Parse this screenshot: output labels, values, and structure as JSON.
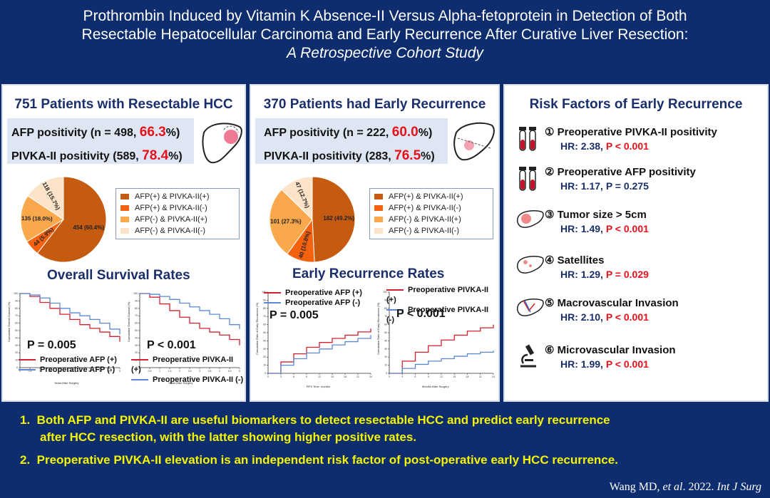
{
  "title": {
    "line1": "Prothrombin Induced by Vitamin K Absence-II Versus Alpha-fetoprotein in Detection of Both",
    "line2": "Resectable Hepatocellular Carcinoma and Early Recurrence After Curative Liver Resection:",
    "subtitle": "A Retrospective Cohort Study"
  },
  "panel1": {
    "heading": "751 Patients with Resectable HCC",
    "afp_label": "AFP positivity (n = 498, ",
    "afp_pct": "66.3",
    "pivka_label": "PIVKA-II positivity (589, ",
    "pivka_pct": "78.4",
    "pct_close": "%)",
    "survival_title": "Overall Survival Rates",
    "km1": {
      "p": "P = 0.005",
      "pos": "Preoperative AFP (+)",
      "neg": "Preoperative AFP (-)",
      "xlabel": "Years After Surgery",
      "ylabel": "Cumulative Overall Survival (%)"
    },
    "km2": {
      "p": "P < 0.001",
      "pos": "Preoperative PIVKA-II (+)",
      "neg": "Preoperative PIVKA-II (-)",
      "xlabel": "Years After Surgery",
      "ylabel": "Cumulative Overall Survival (%)"
    }
  },
  "panel2": {
    "heading": "370 Patients had Early Recurrence",
    "afp_label": "AFP positivity (n = 222, ",
    "afp_pct": "60.0",
    "pivka_label": "PIVKA-II positivity (283, ",
    "pivka_pct": "76.5",
    "pct_close": "%)",
    "recurrence_title": "Early Recurrence Rates",
    "km1": {
      "p": "P = 0.005",
      "pos": "Preoperative AFP (+)",
      "neg": "Preoperative AFP (-)",
      "xlabel": "RFS Time, months",
      "ylabel": "Cumulative Rate of Early Recurrence (%)"
    },
    "km2": {
      "p": "P < 0.001",
      "pos": "Preoperative PIVKA-II (+)",
      "neg": "Preoperative PIVKA-II (-)",
      "xlabel": "Months After Surgery",
      "ylabel": "Cumulative Rate of Early Recurrence (%)"
    }
  },
  "legend": [
    {
      "label": "AFP(+) & PIVKA-II(+)",
      "color": "#c55a11"
    },
    {
      "label": "AFP(+) & PIVKA-II(-)",
      "color": "#f4620f"
    },
    {
      "label": "AFP(-) & PIVKA-II(+)",
      "color": "#f9a94b"
    },
    {
      "label": "AFP(-) & PIVKA-II(-)",
      "color": "#fde3c8"
    }
  ],
  "chart_data": [
    {
      "type": "pie",
      "values": [
        454,
        44,
        135,
        118
      ],
      "labels": [
        "454 (60.4%)",
        "44 (5.9%)",
        "135 (18.0%)",
        "118 (15.7%)"
      ],
      "categories": [
        "AFP(+) & PIVKA-II(+)",
        "AFP(+) & PIVKA-II(-)",
        "AFP(-) & PIVKA-II(+)",
        "AFP(-) & PIVKA-II(-)"
      ]
    },
    {
      "type": "pie",
      "values": [
        182,
        40,
        101,
        47
      ],
      "labels": [
        "182 (49.2%)",
        "40 (10.8%)",
        "101 (27.3%)",
        "47 (12.7%)"
      ],
      "categories": [
        "AFP(+) & PIVKA-II(+)",
        "AFP(+) & PIVKA-II(-)",
        "AFP(-) & PIVKA-II(+)",
        "AFP(-) & PIVKA-II(-)"
      ]
    },
    {
      "type": "line",
      "xlabel": "Years After Surgery",
      "ylabel": "Cumulative Overall Survival (%)",
      "ylim": [
        0,
        100
      ],
      "series": [
        {
          "name": "Preoperative AFP (+)",
          "color": "#d42030",
          "x": [
            0,
            0.5,
            1,
            1.5,
            2,
            2.5,
            3,
            3.5,
            4,
            4.5,
            5
          ],
          "values": [
            100,
            96,
            88,
            80,
            72,
            65,
            58,
            53,
            48,
            42,
            35
          ]
        },
        {
          "name": "Preoperative AFP (-)",
          "color": "#5b88d6",
          "x": [
            0,
            0.5,
            1,
            1.5,
            2,
            2.5,
            3,
            3.5,
            4,
            4.5,
            5
          ],
          "values": [
            100,
            98,
            94,
            87,
            80,
            74,
            70,
            65,
            60,
            52,
            45
          ]
        }
      ]
    },
    {
      "type": "line",
      "xlabel": "Years After Surgery",
      "ylabel": "Cumulative Overall Survival (%)",
      "ylim": [
        0,
        100
      ],
      "series": [
        {
          "name": "Preoperative PIVKA-II (+)",
          "color": "#d42030",
          "x": [
            0,
            0.5,
            1,
            1.5,
            2,
            2.5,
            3,
            3.5,
            4,
            4.5,
            5
          ],
          "values": [
            100,
            95,
            86,
            77,
            68,
            60,
            53,
            48,
            44,
            38,
            30
          ]
        },
        {
          "name": "Preoperative PIVKA-II (-)",
          "color": "#5b88d6",
          "x": [
            0,
            0.5,
            1,
            1.5,
            2,
            2.5,
            3,
            3.5,
            4,
            4.5,
            5
          ],
          "values": [
            100,
            99,
            96,
            92,
            87,
            82,
            77,
            72,
            66,
            58,
            52
          ]
        }
      ]
    },
    {
      "type": "line",
      "xlabel": "RFS Time, months",
      "ylabel": "Cumulative Rate of Early Recurrence (%)",
      "ylim": [
        0,
        100
      ],
      "series": [
        {
          "name": "Preoperative AFP (+)",
          "color": "#d42030",
          "x": [
            0,
            3,
            6,
            9,
            12,
            15,
            18,
            21,
            24
          ],
          "values": [
            0,
            14,
            24,
            32,
            38,
            43,
            47,
            51,
            55
          ]
        },
        {
          "name": "Preoperative AFP (-)",
          "color": "#5b88d6",
          "x": [
            0,
            3,
            6,
            9,
            12,
            15,
            18,
            21,
            24
          ],
          "values": [
            0,
            10,
            18,
            25,
            30,
            35,
            39,
            43,
            47
          ]
        }
      ]
    },
    {
      "type": "line",
      "xlabel": "Months After Surgery",
      "ylabel": "Cumulative Rate of Early Recurrence (%)",
      "ylim": [
        0,
        100
      ],
      "series": [
        {
          "name": "Preoperative PIVKA-II (+)",
          "color": "#d42030",
          "x": [
            0,
            3,
            6,
            9,
            12,
            15,
            18,
            21,
            24
          ],
          "values": [
            0,
            15,
            26,
            34,
            41,
            47,
            52,
            56,
            60
          ]
        },
        {
          "name": "Preoperative PIVKA-II (-)",
          "color": "#5b88d6",
          "x": [
            0,
            3,
            6,
            9,
            12,
            15,
            18,
            21,
            24
          ],
          "values": [
            0,
            6,
            11,
            15,
            18,
            21,
            24,
            26,
            28
          ]
        }
      ]
    }
  ],
  "panel3": {
    "heading": "Risk Factors of Early Recurrence",
    "items": [
      {
        "num": "①",
        "name": "Preoperative PIVKA-II positivity",
        "hr": "HR: 2.38, ",
        "p": "P < 0.001",
        "p_red": true,
        "icon": "blood-tube-icon"
      },
      {
        "num": "②",
        "name": "Preoperative AFP positivity",
        "hr": "HR: 1.17, ",
        "p": "P = 0.275",
        "p_red": false,
        "icon": "blood-tube-icon"
      },
      {
        "num": "③",
        "name": "Tumor size > 5cm",
        "hr": "HR: 1.49, ",
        "p": "P < 0.001",
        "p_red": true,
        "icon": "liver-tumor-icon"
      },
      {
        "num": "④",
        "name": "Satellites",
        "hr": "HR: 1.29, ",
        "p": "P = 0.029",
        "p_red": true,
        "icon": "liver-satellite-icon"
      },
      {
        "num": "⑤",
        "name": "Macrovascular Invasion",
        "hr": "HR: 2.10, ",
        "p": "P < 0.001",
        "p_red": true,
        "icon": "liver-vessel-icon"
      },
      {
        "num": "⑥",
        "name": "Microvascular Invasion",
        "hr": "HR: 1.99, ",
        "p": "P < 0.001",
        "p_red": true,
        "icon": "microscope-icon"
      }
    ]
  },
  "conclusions": [
    {
      "num": "1.",
      "text": "Both AFP and PIVKA-II are useful biomarkers to detect resectable HCC and predict early recurrence",
      "cont": "after HCC resection, with the latter showing higher positive rates."
    },
    {
      "num": "2.",
      "text": "Preoperative PIVKA-II elevation is an independent risk factor of post-operative early HCC recurrence.",
      "cont": ""
    }
  ],
  "citation": {
    "authors": "Wang MD, ",
    "etal": "et al",
    "rest": ". 2022. ",
    "journal": "Int J Surg"
  }
}
